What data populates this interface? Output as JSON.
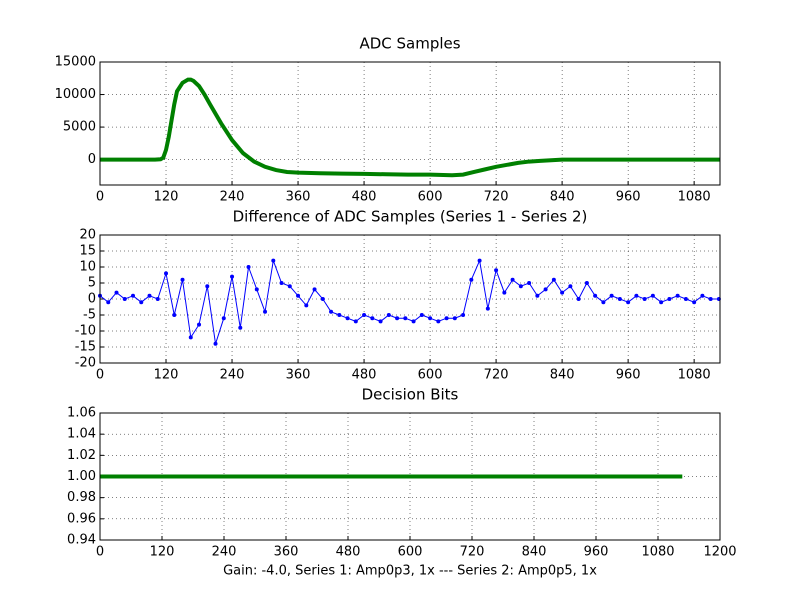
{
  "chart_data": [
    {
      "type": "line",
      "title": "ADC Samples",
      "x": [
        0,
        40,
        80,
        100,
        110,
        115,
        120,
        125,
        130,
        135,
        140,
        150,
        160,
        165,
        170,
        180,
        190,
        200,
        220,
        240,
        260,
        280,
        300,
        320,
        340,
        360,
        400,
        440,
        480,
        520,
        560,
        600,
        640,
        660,
        680,
        700,
        720,
        740,
        760,
        780,
        800,
        820,
        840,
        880,
        920,
        960,
        1000,
        1040,
        1080,
        1127
      ],
      "series": [
        {
          "color": "#008000",
          "values": [
            0,
            0,
            0,
            0,
            50,
            300,
            1500,
            3500,
            6000,
            8500,
            10500,
            11800,
            12300,
            12300,
            12100,
            11300,
            10000,
            8500,
            5600,
            3000,
            1000,
            -300,
            -1100,
            -1600,
            -1900,
            -2000,
            -2100,
            -2150,
            -2200,
            -2250,
            -2300,
            -2300,
            -2400,
            -2300,
            -1900,
            -1500,
            -1100,
            -800,
            -500,
            -300,
            -200,
            -100,
            0,
            0,
            0,
            0,
            0,
            0,
            0,
            0
          ]
        }
      ],
      "xlim": [
        0,
        1127
      ],
      "xticks": [
        0,
        120,
        240,
        360,
        480,
        600,
        720,
        840,
        960,
        1080
      ],
      "ylim": [
        -3900,
        15000
      ],
      "yticks": [
        0,
        5000,
        10000,
        15000
      ],
      "grid": true,
      "marker": false
    },
    {
      "type": "line",
      "title": "Difference of ADC Samples (Series 1 - Series 2)",
      "x": [
        0,
        15,
        30,
        45,
        60,
        75,
        90,
        105,
        120,
        135,
        150,
        165,
        180,
        195,
        210,
        225,
        240,
        255,
        270,
        285,
        300,
        315,
        330,
        345,
        360,
        375,
        390,
        405,
        420,
        435,
        450,
        465,
        480,
        495,
        510,
        525,
        540,
        555,
        570,
        585,
        600,
        615,
        630,
        645,
        660,
        675,
        690,
        705,
        720,
        735,
        750,
        765,
        780,
        795,
        810,
        825,
        840,
        855,
        870,
        885,
        900,
        915,
        930,
        945,
        960,
        975,
        990,
        1005,
        1020,
        1035,
        1050,
        1065,
        1080,
        1095,
        1110,
        1125
      ],
      "series": [
        {
          "color": "#0000ff",
          "values": [
            1,
            -1,
            2,
            0,
            1,
            -1,
            1,
            0,
            8,
            -5,
            6,
            -12,
            -8,
            4,
            -14,
            -6,
            7,
            -9,
            10,
            3,
            -4,
            12,
            5,
            4,
            1,
            -2,
            3,
            0,
            -4,
            -5,
            -6,
            -7,
            -5,
            -6,
            -7,
            -5,
            -6,
            -6,
            -7,
            -5,
            -6,
            -7,
            -6,
            -6,
            -5,
            6,
            12,
            -3,
            9,
            2,
            6,
            4,
            5,
            1,
            3,
            6,
            2,
            4,
            0,
            5,
            1,
            -1,
            1,
            0,
            -1,
            1,
            0,
            1,
            -1,
            0,
            1,
            0,
            -1,
            1,
            0,
            0
          ]
        }
      ],
      "xlim": [
        0,
        1127
      ],
      "xticks": [
        0,
        120,
        240,
        360,
        480,
        600,
        720,
        840,
        960,
        1080
      ],
      "ylim": [
        -20,
        20
      ],
      "yticks": [
        -20,
        -15,
        -10,
        -5,
        0,
        5,
        10,
        15,
        20
      ],
      "grid": true,
      "marker": true
    },
    {
      "type": "line",
      "title": "Decision Bits",
      "x": [
        0,
        1127
      ],
      "series": [
        {
          "color": "#008000",
          "values": [
            1,
            1
          ]
        }
      ],
      "xlim": [
        0,
        1200
      ],
      "xticks": [
        0,
        120,
        240,
        360,
        480,
        600,
        720,
        840,
        960,
        1080,
        1200
      ],
      "ylim": [
        0.94,
        1.06
      ],
      "yticks": [
        0.94,
        0.96,
        0.98,
        {
          "value": 1,
          "label": "1.00"
        },
        1.02,
        1.04,
        1.06
      ],
      "xlabel": "Gain: -4.0, Series 1: Amp0p3, 1x --- Series 2: Amp0p5, 1x",
      "grid": true,
      "marker": false
    }
  ]
}
